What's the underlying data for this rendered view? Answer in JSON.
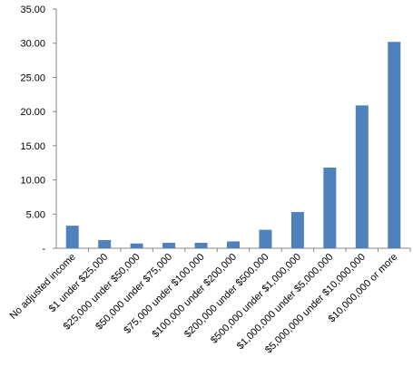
{
  "chart_data": {
    "type": "bar",
    "categories": [
      "No adjusted income",
      "$1 under $25,000",
      "$25,000 under $50,000",
      "$50,000 under $75,000",
      "$75,000 under $100,000",
      "$100,000 under $200,000",
      "$200,000 under $500,000",
      "$500,000 under $1,000,000",
      "$1,000,000 under $5,000,000",
      "$5,000,000 under $10,000,000",
      "$10,000,000 or more"
    ],
    "values": [
      3.3,
      1.2,
      0.7,
      0.8,
      0.8,
      1.0,
      2.7,
      5.3,
      11.8,
      20.9,
      30.2
    ],
    "color": "#4f81bd",
    "ylim": [
      0,
      35
    ],
    "yticks": [
      {
        "value": 0,
        "label": "-"
      },
      {
        "value": 5,
        "label": "5.00"
      },
      {
        "value": 10,
        "label": "10.00"
      },
      {
        "value": 15,
        "label": "15.00"
      },
      {
        "value": 20,
        "label": "20.00"
      },
      {
        "value": 25,
        "label": "25.00"
      },
      {
        "value": 30,
        "label": "30.00"
      },
      {
        "value": 35,
        "label": "35.00"
      }
    ],
    "grid": false
  }
}
